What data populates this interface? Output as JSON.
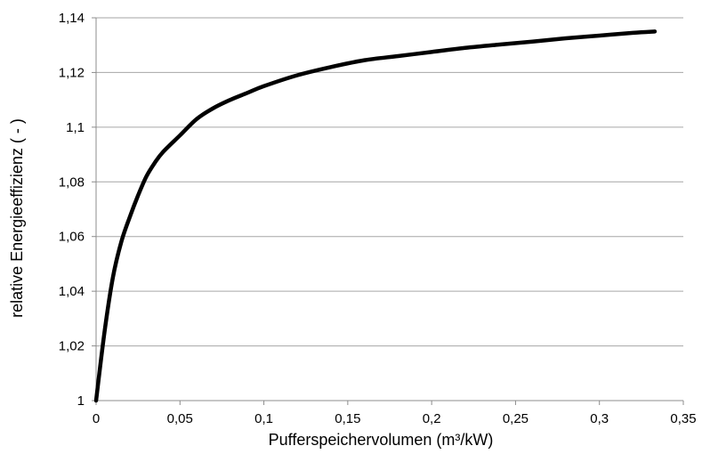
{
  "chart_data": {
    "type": "line",
    "title": "",
    "xlabel": "Pufferspeichervolumen (m³/kW)",
    "ylabel": "relative Energieeffizienz ( - )",
    "xlim": [
      0,
      0.35
    ],
    "ylim": [
      1,
      1.14
    ],
    "x_ticks": [
      0,
      0.05,
      0.1,
      0.15,
      0.2,
      0.25,
      0.3,
      0.35
    ],
    "x_tick_labels": [
      "0",
      "0,05",
      "0,1",
      "0,15",
      "0,2",
      "0,25",
      "0,3",
      "0,35"
    ],
    "y_ticks": [
      1,
      1.02,
      1.04,
      1.06,
      1.08,
      1.1,
      1.12,
      1.14
    ],
    "y_tick_labels": [
      "1",
      "1,02",
      "1,04",
      "1,06",
      "1,08",
      "1,1",
      "1,12",
      "1,14"
    ],
    "grid": "horizontal",
    "legend": "none",
    "series": [
      {
        "color": "#000000",
        "x": [
          0,
          0.005,
          0.01,
          0.015,
          0.02,
          0.025,
          0.03,
          0.035,
          0.04,
          0.05,
          0.06,
          0.07,
          0.08,
          0.09,
          0.1,
          0.12,
          0.14,
          0.16,
          0.18,
          0.2,
          0.22,
          0.24,
          0.26,
          0.28,
          0.3,
          0.32,
          0.333
        ],
        "y": [
          1.0,
          1.025,
          1.045,
          1.058,
          1.067,
          1.075,
          1.082,
          1.087,
          1.091,
          1.097,
          1.103,
          1.107,
          1.11,
          1.1125,
          1.115,
          1.119,
          1.122,
          1.1245,
          1.126,
          1.1275,
          1.129,
          1.1302,
          1.1313,
          1.1325,
          1.1335,
          1.1345,
          1.135
        ]
      }
    ]
  }
}
